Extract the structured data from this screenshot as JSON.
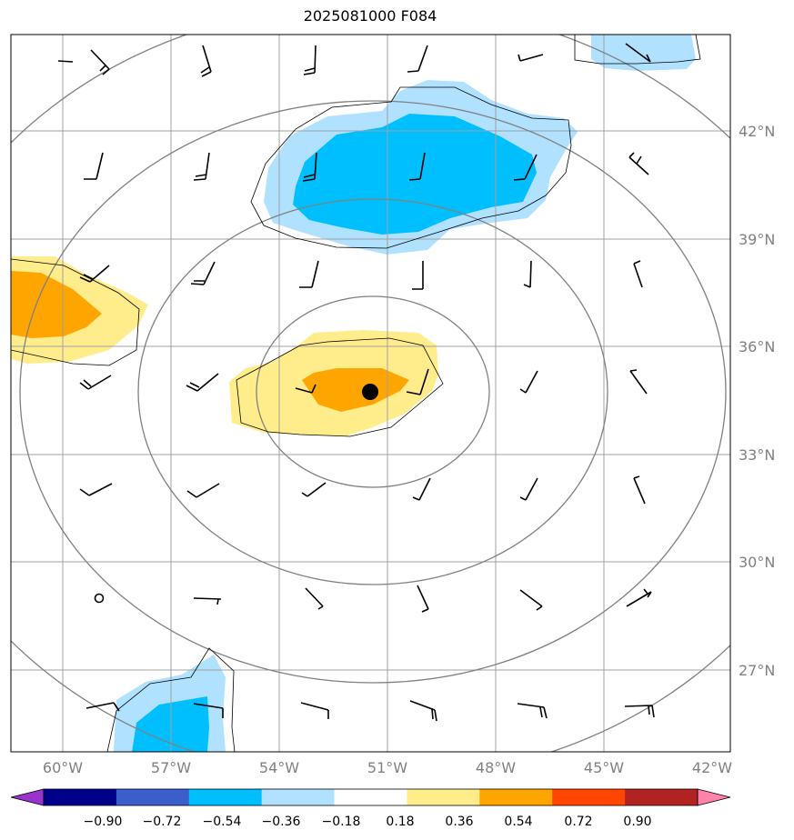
{
  "title": "2025081000 F084",
  "lat_labels": [
    "42°N",
    "39°N",
    "36°N",
    "33°N",
    "30°N",
    "27°N"
  ],
  "lon_labels": [
    "60°W",
    "57°W",
    "54°W",
    "51°W",
    "48°W",
    "45°W",
    "42°W"
  ],
  "colorbar": {
    "ticks": [
      "−0.90",
      "−0.72",
      "−0.54",
      "−0.36",
      "−0.18",
      "0.18",
      "0.36",
      "0.54",
      "0.72",
      "0.90"
    ],
    "colors": [
      "#9a32cd",
      "#00008b",
      "#3a5fcd",
      "#00bfff",
      "#b0e2ff",
      "#ffffff",
      "#ffec8b",
      "#ffa500",
      "#ff4500",
      "#b22222",
      "#ff82ab"
    ]
  },
  "storm_center": {
    "lon": -51.5,
    "lat": 35.2
  }
}
